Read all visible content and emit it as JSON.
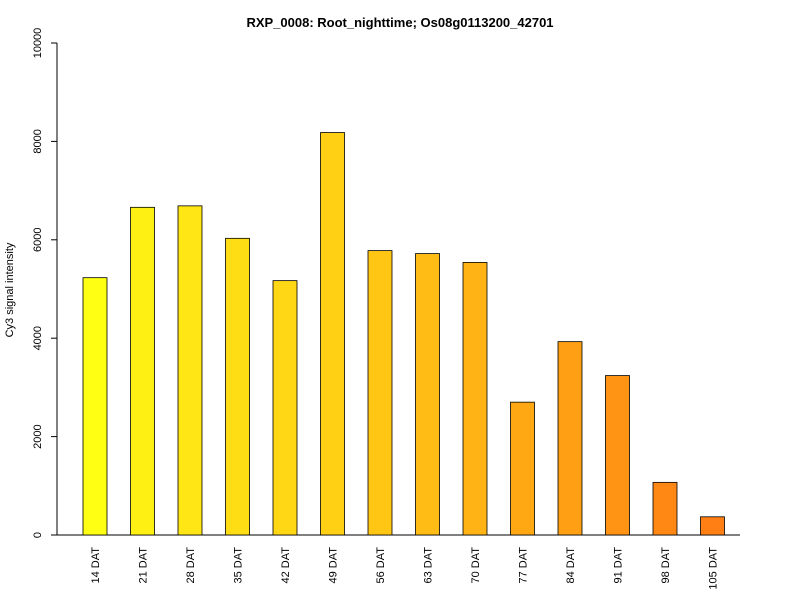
{
  "chart_data": {
    "type": "bar",
    "title": "RXP_0008: Root_nighttime; Os08g0113200_42701",
    "xlabel": "",
    "ylabel": "Cy3 signal intensity",
    "ylim": [
      0,
      10000
    ],
    "yticks": [
      0,
      2000,
      4000,
      6000,
      8000,
      10000
    ],
    "grid": false,
    "legend": "none",
    "categories": [
      "14 DAT",
      "21 DAT",
      "28 DAT",
      "35 DAT",
      "42 DAT",
      "49 DAT",
      "56 DAT",
      "63 DAT",
      "70 DAT",
      "77 DAT",
      "84 DAT",
      "91 DAT",
      "98 DAT",
      "105 DAT"
    ],
    "values": [
      5230,
      6660,
      6690,
      6030,
      5170,
      8180,
      5780,
      5720,
      5540,
      2700,
      3930,
      3240,
      1070,
      370
    ],
    "colors": [
      "#FFFF14",
      "#FFF014",
      "#FFE614",
      "#FFDD14",
      "#FFD714",
      "#FFD014",
      "#FFC614",
      "#FFBC14",
      "#FFB314",
      "#FFA814",
      "#FFA014",
      "#FF9314",
      "#FF8714",
      "#FF7F14"
    ]
  }
}
